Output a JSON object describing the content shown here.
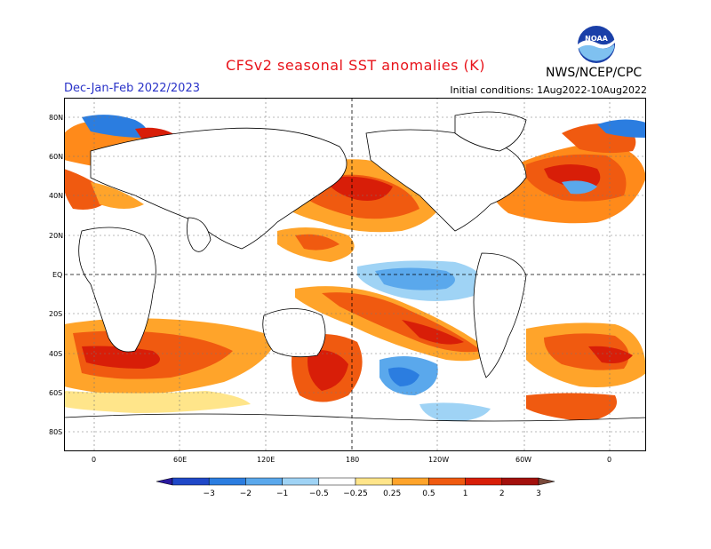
{
  "header": {
    "title": "CFSv2 seasonal SST anomalies (K)",
    "season": "Dec-Jan-Feb 2022/2023",
    "initial_conditions": "Initial conditions: 1Aug2022-10Aug2022",
    "org": "NWS/NCEP/CPC",
    "logo_text": "NOAA"
  },
  "map": {
    "lat_labels": [
      "80N",
      "60N",
      "40N",
      "20N",
      "EQ",
      "20S",
      "40S",
      "60S",
      "80S"
    ],
    "lon_labels": [
      "0",
      "60E",
      "120E",
      "180",
      "120W",
      "60W",
      "0"
    ]
  },
  "colorbar": {
    "ticks": [
      "−3",
      "−2",
      "−1",
      "−0.5",
      "−0.25",
      "0.25",
      "0.5",
      "1",
      "2",
      "3"
    ],
    "colors": [
      "#2a1a9e",
      "#1f48c8",
      "#2b7de0",
      "#5aa8ec",
      "#9fd3f5",
      "#ffffff",
      "#ffe58a",
      "#ffa42a",
      "#f05a10",
      "#d81e08",
      "#a3100c",
      "#7a4a3c"
    ]
  },
  "colors": {
    "land": "#ffffff",
    "coast": "#000000",
    "grid": "#555555"
  }
}
